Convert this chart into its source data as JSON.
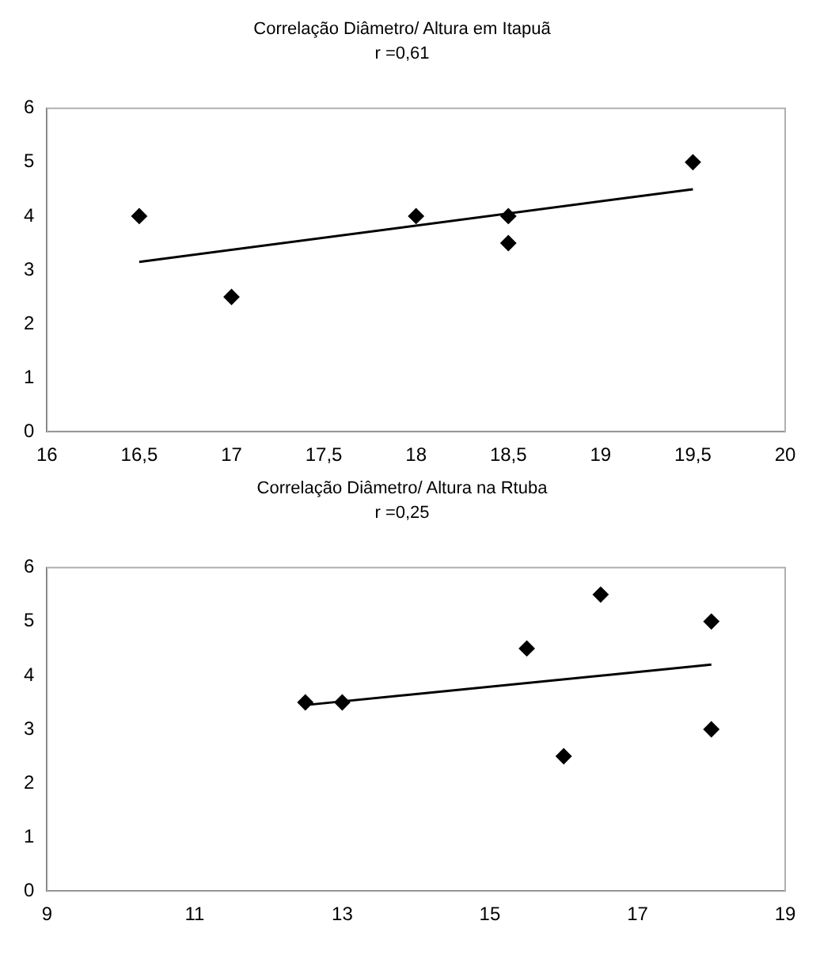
{
  "chart_data": [
    {
      "type": "scatter",
      "title": "Correlação Diâmetro/ Altura em Itapuã",
      "subtitle": "r =0,61",
      "grid": false,
      "xlim": [
        16,
        20
      ],
      "xticks": [
        16,
        {
          "value": 16.5,
          "label": "16,5"
        },
        17,
        {
          "value": 17.5,
          "label": "17,5"
        },
        18,
        {
          "value": 18.5,
          "label": "18,5"
        },
        19,
        {
          "value": 19.5,
          "label": "19,5"
        },
        20
      ],
      "ylim": [
        0,
        6
      ],
      "yticks": [
        0,
        1,
        2,
        3,
        4,
        5,
        6
      ],
      "series": [
        {
          "type": "scatter",
          "marker": "diamond",
          "color": "#000000",
          "x": [
            16.5,
            17,
            18,
            18.5,
            18.5,
            19.5
          ],
          "values": [
            4,
            2.5,
            4,
            4,
            3.5,
            5
          ]
        },
        {
          "type": "line",
          "marker": "none",
          "color": "#000000",
          "x": [
            16.5,
            19.5
          ],
          "values": [
            3.15,
            4.5
          ]
        }
      ]
    },
    {
      "type": "scatter",
      "title": "Correlação Diâmetro/ Altura na Rtuba",
      "subtitle": "r =0,25",
      "grid": false,
      "xlim": [
        9,
        19
      ],
      "xticks": [
        9,
        11,
        13,
        15,
        17,
        19
      ],
      "ylim": [
        0,
        6
      ],
      "yticks": [
        0,
        1,
        2,
        3,
        4,
        5,
        6
      ],
      "series": [
        {
          "type": "scatter",
          "marker": "diamond",
          "color": "#000000",
          "x": [
            12.5,
            13,
            15.5,
            16,
            16.5,
            18,
            18
          ],
          "values": [
            3.5,
            3.5,
            4.5,
            2.5,
            5.5,
            5,
            3
          ]
        },
        {
          "type": "line",
          "marker": "none",
          "color": "#000000",
          "x": [
            12.5,
            18
          ],
          "values": [
            3.45,
            4.2
          ]
        }
      ]
    }
  ]
}
